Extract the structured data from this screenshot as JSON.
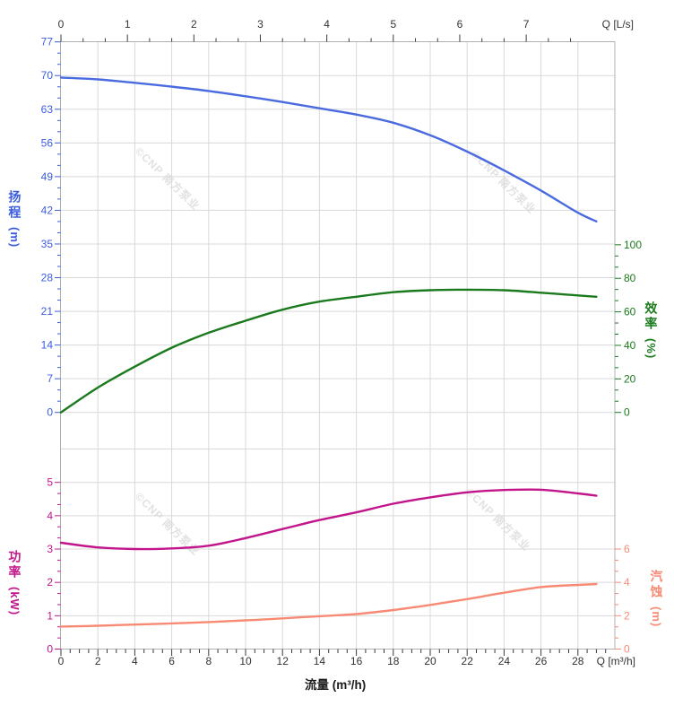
{
  "axes": {
    "top": {
      "title": "Q [L/s]",
      "ticks": [
        0,
        1,
        2,
        3,
        4,
        5,
        6,
        7
      ],
      "color": "#333333"
    },
    "bottom": {
      "title": "Q [m³/h]",
      "axis_title": "流量 (m³/h)",
      "ticks": [
        0,
        2,
        4,
        6,
        8,
        10,
        12,
        14,
        16,
        18,
        20,
        22,
        24,
        26,
        28
      ],
      "color": "#333333"
    },
    "head": {
      "name": "扬程",
      "unit": "(m)",
      "ticks": [
        0,
        7,
        14,
        21,
        28,
        35,
        42,
        49,
        56,
        63,
        70,
        77
      ],
      "color": "#3b5ce0"
    },
    "efficiency": {
      "name": "效率",
      "unit": "(%)",
      "ticks": [
        0,
        20,
        40,
        60,
        80,
        100
      ],
      "color": "#1a7a1d"
    },
    "power": {
      "name": "功率",
      "unit": "(kW)",
      "ticks": [
        0,
        1,
        2,
        3,
        4,
        5
      ],
      "color": "#c2158b"
    },
    "npsh": {
      "name": "汽蚀",
      "unit": "(m)",
      "ticks": [
        0,
        2,
        4,
        6
      ],
      "color": "#f78a75"
    }
  },
  "watermark": {
    "text": "©CNP 南方泵业",
    "color": "#c9c9c9"
  },
  "chart_data": {
    "type": "line",
    "x": [
      0,
      2,
      4,
      6,
      8,
      10,
      12,
      14,
      16,
      18,
      20,
      22,
      24,
      26,
      28,
      29
    ],
    "x_unit": "m³/h",
    "x_axis_title": "流量 (m³/h)",
    "top_axis_title": "Q [L/s]",
    "right_axis_title": "Q [m³/h]",
    "axis_ranges": {
      "flow_m3h": [
        0,
        30
      ],
      "flow_Ls": [
        0,
        8.33
      ],
      "head_m": [
        0,
        77
      ],
      "efficiency_pct": [
        0,
        100
      ],
      "power_kW": [
        0,
        5
      ],
      "npsh_m": [
        0,
        6
      ]
    },
    "grid": true,
    "legend": "none",
    "series": [
      {
        "name": "扬程",
        "unit": "m",
        "axis": "head",
        "color": "#4a6be0",
        "values": [
          69.6,
          69.2,
          68.5,
          67.7,
          66.8,
          65.7,
          64.5,
          63.2,
          61.9,
          60.2,
          57.6,
          54.2,
          50.3,
          46.1,
          41.5,
          39.7
        ]
      },
      {
        "name": "效率",
        "unit": "%",
        "axis": "efficiency",
        "color": "#1a7a1d",
        "values": [
          0,
          14.8,
          27.3,
          38.6,
          47.5,
          54.7,
          61.3,
          66.1,
          69.0,
          71.7,
          72.9,
          73.2,
          72.9,
          71.4,
          69.8,
          69.0
        ]
      },
      {
        "name": "功率",
        "unit": "kW",
        "axis": "power",
        "color": "#c2158b",
        "values": [
          3.19,
          3.05,
          3.0,
          3.02,
          3.1,
          3.33,
          3.6,
          3.87,
          4.1,
          4.36,
          4.55,
          4.7,
          4.77,
          4.78,
          4.67,
          4.6
        ]
      },
      {
        "name": "汽蚀",
        "unit": "m",
        "axis": "npsh",
        "color": "#f78a75",
        "values": [
          1.35,
          1.4,
          1.47,
          1.54,
          1.62,
          1.72,
          1.84,
          1.97,
          2.1,
          2.34,
          2.65,
          3.0,
          3.38,
          3.72,
          3.85,
          3.9
        ]
      }
    ]
  }
}
